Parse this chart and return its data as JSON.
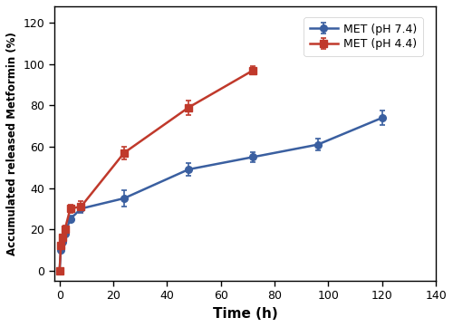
{
  "ph74_x": [
    0,
    0.5,
    1,
    2,
    4,
    8,
    24,
    48,
    72,
    96,
    120
  ],
  "ph74_y": [
    0,
    10,
    14,
    18,
    25,
    30,
    35,
    49,
    55,
    61,
    74
  ],
  "ph74_err": [
    0,
    1.0,
    1.2,
    1.5,
    1.5,
    2.0,
    4.0,
    3.0,
    2.5,
    3.0,
    3.5
  ],
  "ph44_x": [
    0,
    0.5,
    1,
    2,
    4,
    8,
    24,
    48,
    72
  ],
  "ph44_y": [
    0,
    12,
    16,
    20,
    30,
    31,
    57,
    79,
    97
  ],
  "ph44_err": [
    0,
    1.5,
    1.5,
    2.0,
    2.0,
    2.5,
    3.0,
    3.5,
    2.0
  ],
  "color_ph74": "#3a5fa0",
  "color_ph44": "#c0392b",
  "xlabel": "Time (h)",
  "ylabel": "Accumulated released Metformin (%)",
  "xlim": [
    -2,
    138
  ],
  "ylim": [
    -5,
    128
  ],
  "xticks": [
    0,
    20,
    40,
    60,
    80,
    100,
    120,
    140
  ],
  "yticks": [
    0,
    20,
    40,
    60,
    80,
    100,
    120
  ],
  "legend_ph74": "MET (pH 7.4)",
  "legend_ph44": "MET (pH 4.4)",
  "marker_ph74": "o",
  "marker_ph44": "s",
  "linewidth": 1.8,
  "markersize": 5.5
}
